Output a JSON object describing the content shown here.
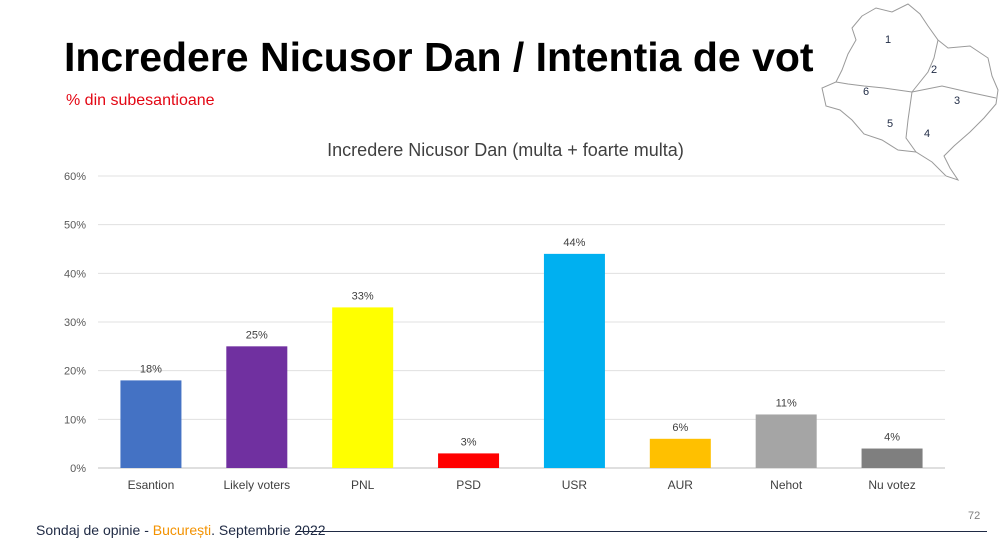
{
  "header": {
    "title": "Incredere Nicusor Dan / Intentia de vot",
    "subtitle": "% din subesantioane"
  },
  "chart_data": {
    "type": "bar",
    "title": "Incredere Nicusor Dan (multa + foarte multa)",
    "categories": [
      "Esantion",
      "Likely voters",
      "PNL",
      "PSD",
      "USR",
      "AUR",
      "Nehot",
      "Nu votez"
    ],
    "values": [
      18,
      25,
      33,
      3,
      44,
      6,
      11,
      4
    ],
    "data_labels": [
      "18%",
      "25%",
      "33%",
      "3%",
      "44%",
      "6%",
      "11%",
      "4%"
    ],
    "colors": [
      "#4472c4",
      "#7030a0",
      "#ffff00",
      "#ff0000",
      "#00b0f0",
      "#ffc000",
      "#a5a5a5",
      "#7f7f7f"
    ],
    "ylim": [
      0,
      60
    ],
    "yticks": [
      0,
      10,
      20,
      30,
      40,
      50,
      60
    ],
    "ytick_labels": [
      "0%",
      "10%",
      "20%",
      "30%",
      "40%",
      "50%",
      "60%"
    ],
    "grid": true,
    "xlabel": "",
    "ylabel": ""
  },
  "map": {
    "sector_labels": [
      "1",
      "2",
      "3",
      "4",
      "5",
      "6"
    ]
  },
  "footer": {
    "prefix": "Sondaj de opinie - ",
    "city": "București",
    "suffix": ". Septembrie 2022",
    "page_number": "72"
  }
}
